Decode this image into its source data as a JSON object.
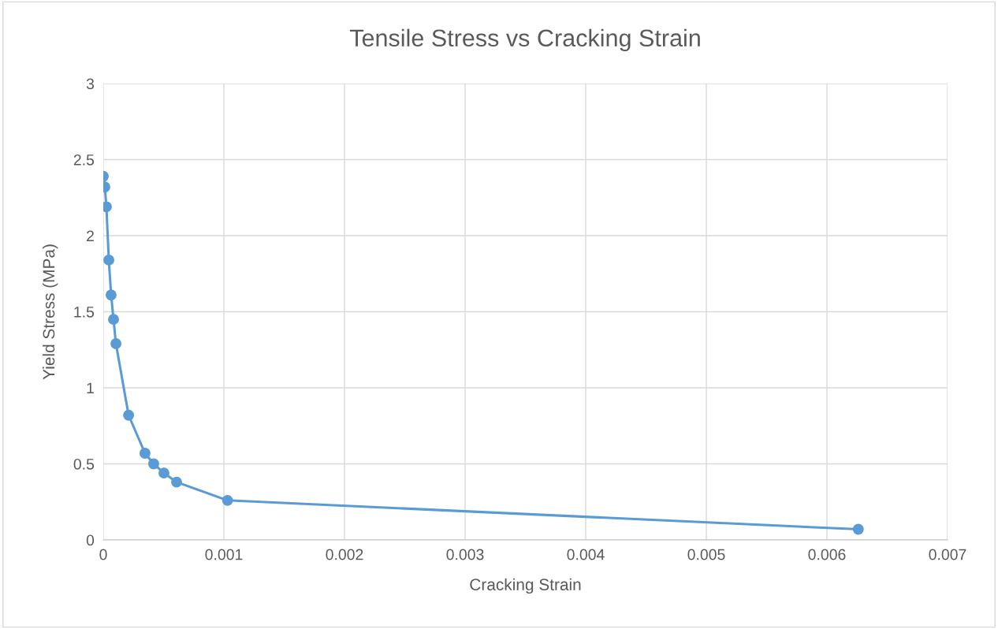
{
  "chart_data": {
    "type": "line",
    "title": "Tensile Stress vs Cracking Strain",
    "xlabel": "Cracking Strain",
    "ylabel": "Yield Stress (MPa)",
    "x": [
      0,
      1.3e-05,
      2.6e-05,
      4.6e-05,
      6.5e-05,
      8.5e-05,
      0.000105,
      0.00021,
      0.000346,
      0.000418,
      0.000503,
      0.000608,
      0.00103,
      0.00626
    ],
    "series": [
      {
        "color": "#5b9bd5",
        "values": [
          2.39,
          2.32,
          2.19,
          1.84,
          1.61,
          1.45,
          1.29,
          0.82,
          0.57,
          0.5,
          0.44,
          0.38,
          0.26,
          0.07
        ]
      }
    ],
    "xlim": [
      0,
      0.007
    ],
    "xticks": [
      0,
      0.001,
      0.002,
      0.003,
      0.004,
      0.005,
      0.006,
      0.007
    ],
    "ylim": [
      0,
      3
    ],
    "yticks": [
      0,
      0.5,
      1,
      1.5,
      2,
      2.5,
      3
    ],
    "grid": true,
    "marker": "circle",
    "line_style": "solid"
  }
}
